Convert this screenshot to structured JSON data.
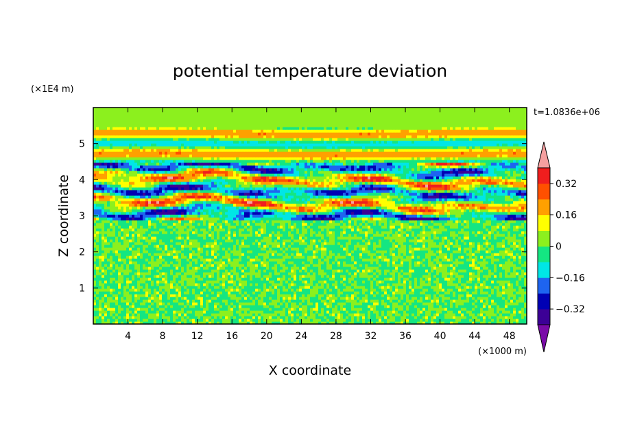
{
  "chart_data": {
    "type": "heatmap",
    "title": "potential temperature deviation",
    "xlabel": "X coordinate",
    "ylabel": "Z coordinate",
    "x_units": "(×1000 m)",
    "y_units": "(×1E4 m)",
    "time_label": "t=1.0836e+06",
    "xlim": [
      0,
      50
    ],
    "ylim": [
      0,
      6
    ],
    "x_ticks": [
      4,
      8,
      12,
      16,
      20,
      24,
      28,
      32,
      36,
      40,
      44,
      48
    ],
    "y_ticks": [
      1,
      2,
      3,
      4,
      5
    ],
    "colorbar": {
      "levels": [
        -0.4,
        -0.32,
        -0.24,
        -0.16,
        -0.08,
        0,
        0.08,
        0.16,
        0.24,
        0.32,
        0.4
      ],
      "labeled_ticks": [
        "0.32",
        "0.16",
        "0",
        "−0.16",
        "−0.32"
      ],
      "labeled_values": [
        0.32,
        0.16,
        0,
        -0.16,
        -0.32
      ],
      "colors_low_to_high": [
        "#7a0aa8",
        "#3c0096",
        "#0000b4",
        "#1e64f0",
        "#00e6e6",
        "#14e682",
        "#8cf01e",
        "#ffff00",
        "#ffa000",
        "#ff5000",
        "#f01e1e",
        "#f5a0a0"
      ],
      "extend": "both"
    },
    "layers": [
      {
        "z_range": [
          0,
          2.85
        ],
        "pattern": "fine noise",
        "range": [
          -0.08,
          0.08
        ]
      },
      {
        "z_range": [
          2.85,
          4.5
        ],
        "pattern": "strong layered perturbations",
        "range": [
          -0.4,
          0.4
        ]
      },
      {
        "z_range": [
          4.5,
          5.5
        ],
        "pattern": "weak horizontal bands",
        "range": [
          -0.16,
          0.24
        ]
      },
      {
        "z_range": [
          5.5,
          6.0
        ],
        "pattern": "near zero",
        "range": [
          0,
          0.08
        ]
      }
    ]
  }
}
